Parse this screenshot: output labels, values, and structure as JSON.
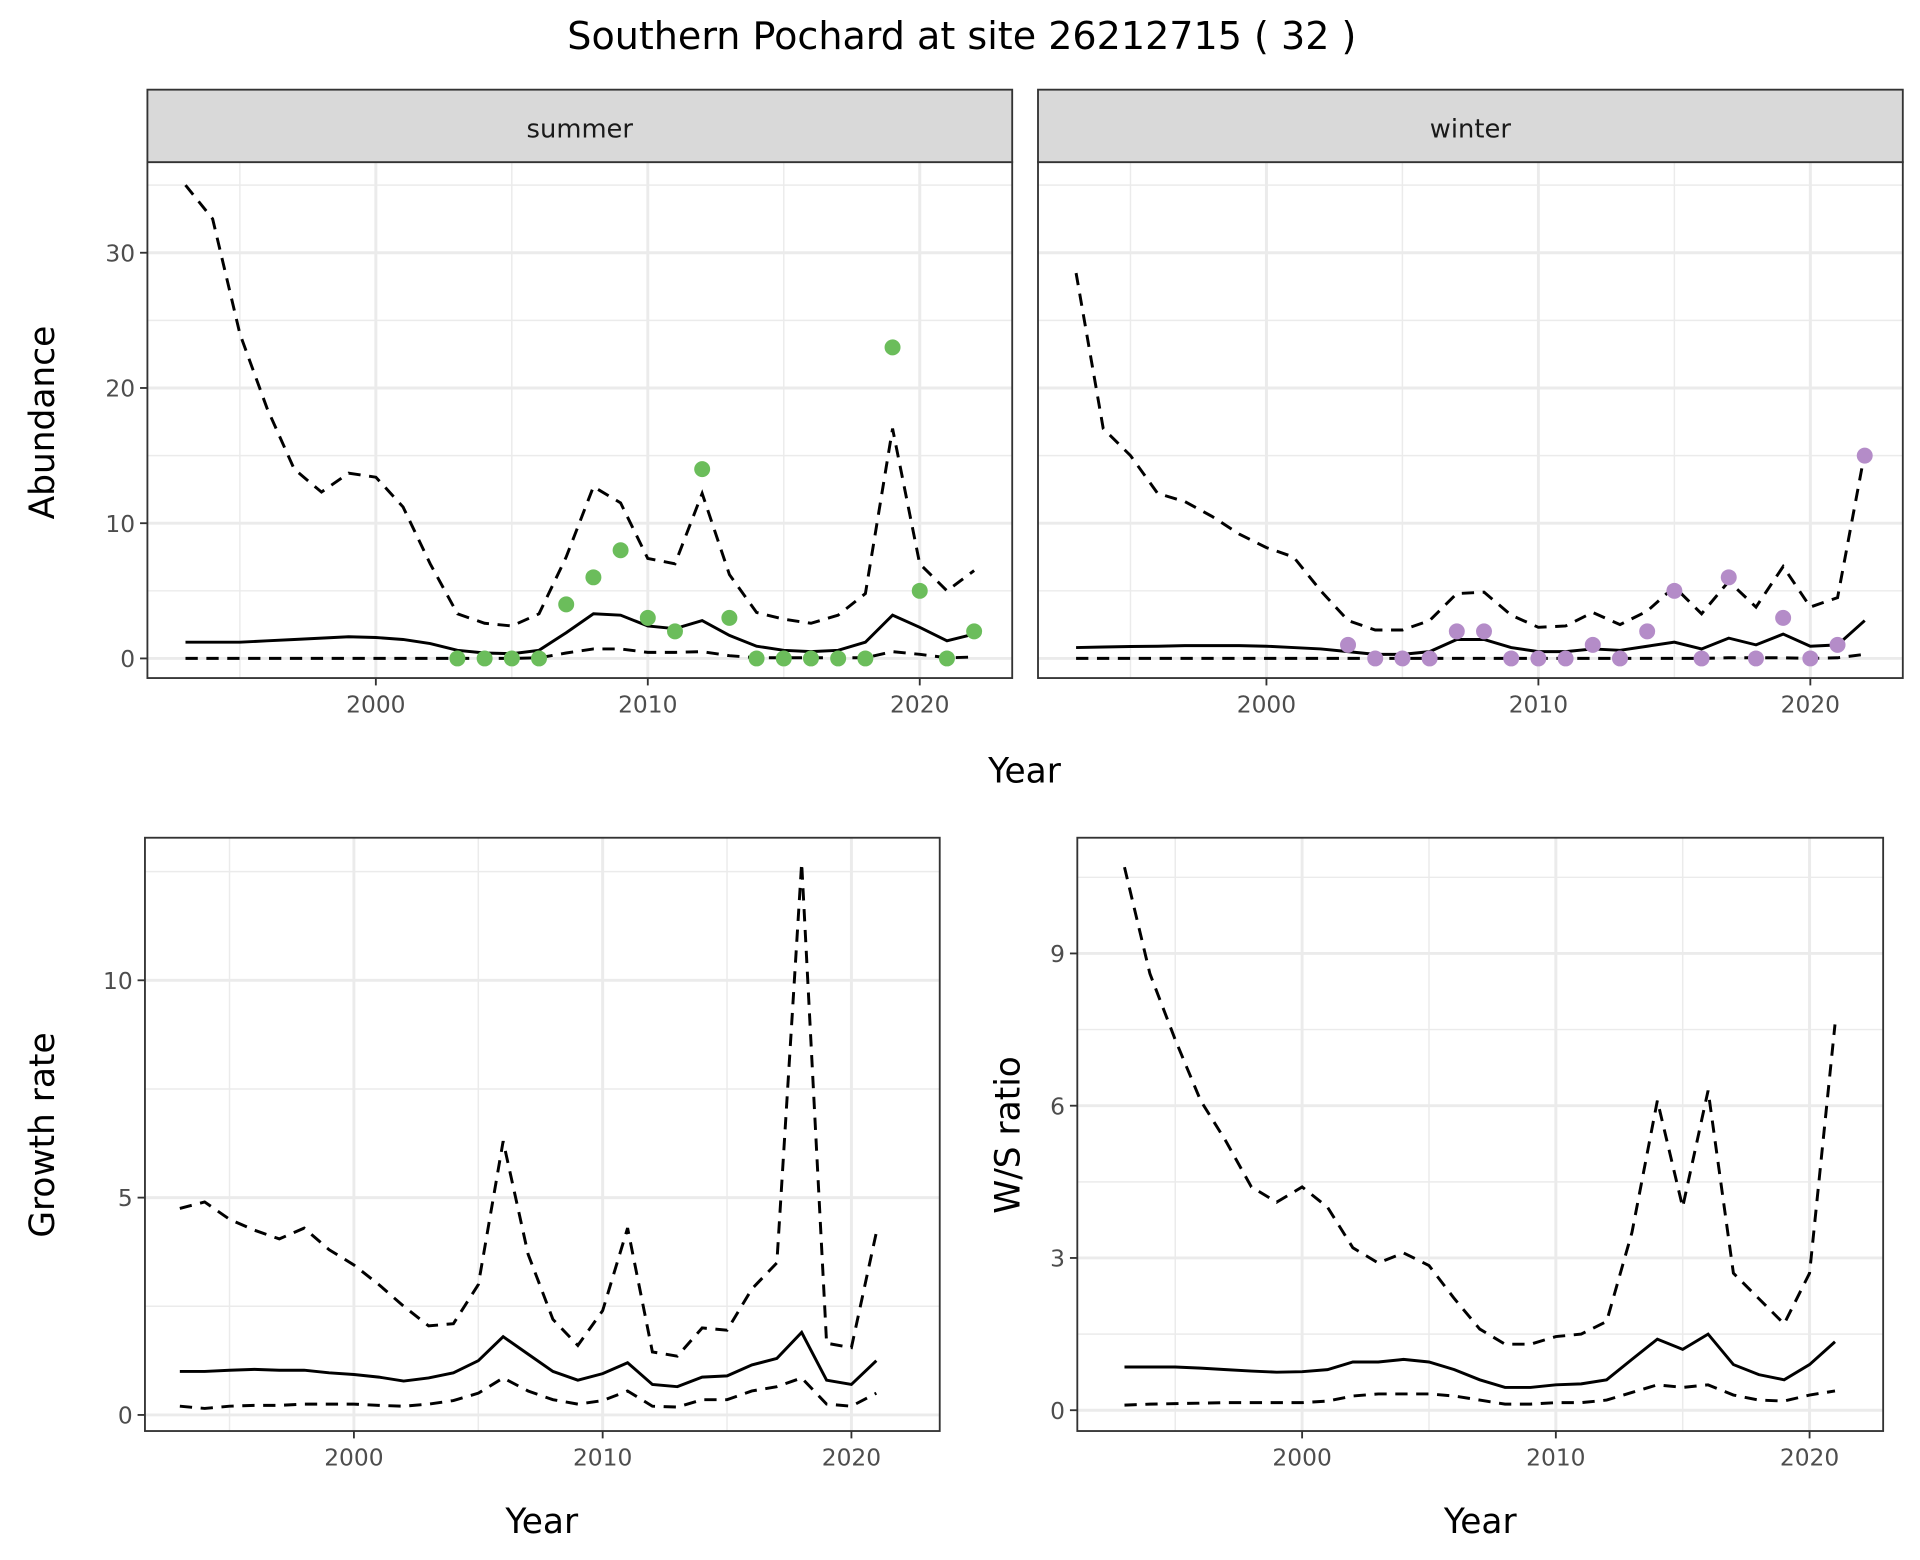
{
  "title": "Southern Pochard at site 26212715 ( 32 )",
  "colors": {
    "summer_points": "#6bbd5b",
    "winter_points": "#b48cc8",
    "lines": "#000000",
    "strip_bg": "#d9d9d9",
    "grid": "#ebebeb"
  },
  "chart_data": [
    {
      "type": "line+scatter",
      "facet": "summer",
      "xlabel": "Year",
      "ylabel": "Abundance",
      "xlim": [
        1991.6,
        2023.4
      ],
      "ylim": [
        -1.45,
        36.7
      ],
      "xticks": [
        2000,
        2010,
        2020
      ],
      "yticks": [
        0,
        10,
        20,
        30
      ],
      "grid": true,
      "x": [
        1993,
        1994,
        1995,
        1996,
        1997,
        1998,
        1999,
        2000,
        2001,
        2002,
        2003,
        2004,
        2005,
        2006,
        2007,
        2008,
        2009,
        2010,
        2011,
        2012,
        2013,
        2014,
        2015,
        2016,
        2017,
        2018,
        2019,
        2020,
        2021,
        2022
      ],
      "mean": [
        1.2,
        1.2,
        1.2,
        1.3,
        1.4,
        1.5,
        1.6,
        1.55,
        1.4,
        1.1,
        0.6,
        0.4,
        0.35,
        0.6,
        1.9,
        3.3,
        3.2,
        2.4,
        2.2,
        2.8,
        1.7,
        0.9,
        0.6,
        0.5,
        0.6,
        1.2,
        3.2,
        2.3,
        1.3,
        1.8
      ],
      "upper": [
        35,
        32.5,
        24,
        18.5,
        14,
        12.3,
        13.7,
        13.4,
        11.2,
        7,
        3.3,
        2.6,
        2.4,
        3.3,
        7.5,
        12.7,
        11.5,
        7.4,
        7,
        12.2,
        6.2,
        3.4,
        2.9,
        2.6,
        3.2,
        4.8,
        17,
        7,
        5,
        6.5
      ],
      "lower": [
        0,
        0,
        0,
        0,
        0,
        0,
        0,
        0,
        0,
        0,
        0,
        0,
        0,
        0.05,
        0.4,
        0.7,
        0.7,
        0.45,
        0.45,
        0.5,
        0.2,
        0.05,
        0.05,
        0.05,
        0.05,
        0.05,
        0.5,
        0.3,
        0.05,
        0.1
      ],
      "points": {
        "x": [
          2003,
          2004,
          2005,
          2006,
          2007,
          2008,
          2009,
          2010,
          2011,
          2012,
          2013,
          2014,
          2015,
          2016,
          2017,
          2018,
          2019,
          2020,
          2021,
          2022
        ],
        "y": [
          0,
          0,
          0,
          0,
          4,
          6,
          8,
          3,
          2,
          14,
          3,
          0,
          0,
          0,
          0,
          0,
          23,
          5,
          0,
          2
        ]
      }
    },
    {
      "type": "line+scatter",
      "facet": "winter",
      "xlabel": "Year",
      "ylabel": "Abundance",
      "xlim": [
        1991.6,
        2023.4
      ],
      "ylim": [
        -1.45,
        36.7
      ],
      "xticks": [
        2000,
        2010,
        2020
      ],
      "yticks": [
        0,
        10,
        20,
        30
      ],
      "grid": true,
      "x": [
        1993,
        1994,
        1995,
        1996,
        1997,
        1998,
        1999,
        2000,
        2001,
        2002,
        2003,
        2004,
        2005,
        2006,
        2007,
        2008,
        2009,
        2010,
        2011,
        2012,
        2013,
        2014,
        2015,
        2016,
        2017,
        2018,
        2019,
        2020,
        2021,
        2022
      ],
      "mean": [
        0.8,
        0.85,
        0.88,
        0.9,
        0.95,
        0.95,
        0.95,
        0.9,
        0.8,
        0.7,
        0.5,
        0.3,
        0.3,
        0.5,
        1.4,
        1.4,
        0.8,
        0.5,
        0.5,
        0.7,
        0.6,
        0.9,
        1.2,
        0.7,
        1.5,
        1.0,
        1.8,
        0.9,
        1.0,
        2.8
      ],
      "upper": [
        28.5,
        17,
        15,
        12.2,
        11.6,
        10.5,
        9.2,
        8.2,
        7.5,
        5,
        2.8,
        2.1,
        2.1,
        2.8,
        4.8,
        4.9,
        3.2,
        2.3,
        2.4,
        3.4,
        2.5,
        3.5,
        5.3,
        3.3,
        5.7,
        3.8,
        6.8,
        3.8,
        4.5,
        15.2
      ],
      "lower": [
        0,
        0,
        0,
        0,
        0,
        0,
        0,
        0,
        0,
        0,
        0,
        0,
        0,
        0,
        0,
        0,
        0,
        0,
        0,
        0,
        0,
        0,
        0,
        0,
        0.05,
        0.05,
        0.05,
        0,
        0.05,
        0.3
      ],
      "points": {
        "x": [
          2003,
          2004,
          2005,
          2006,
          2007,
          2008,
          2009,
          2010,
          2011,
          2012,
          2013,
          2014,
          2015,
          2016,
          2017,
          2018,
          2019,
          2020,
          2021,
          2022
        ],
        "y": [
          1,
          0,
          0,
          0,
          2,
          2,
          0,
          0,
          0,
          1,
          0,
          2,
          5,
          0,
          6,
          0,
          3,
          0,
          1,
          15
        ]
      }
    },
    {
      "type": "line",
      "xlabel": "Year",
      "ylabel": "Growth rate",
      "xlim": [
        1991.6,
        2023.55
      ],
      "ylim": [
        -0.37,
        13.28
      ],
      "xticks": [
        2000,
        2010,
        2020
      ],
      "yticks": [
        0,
        5,
        10
      ],
      "grid": true,
      "x": [
        1993,
        1994,
        1995,
        1996,
        1997,
        1998,
        1999,
        2000,
        2001,
        2002,
        2003,
        2004,
        2005,
        2006,
        2007,
        2008,
        2009,
        2010,
        2011,
        2012,
        2013,
        2014,
        2015,
        2016,
        2017,
        2018,
        2019,
        2020,
        2021
      ],
      "mean": [
        1.0,
        1.0,
        1.03,
        1.05,
        1.03,
        1.03,
        0.97,
        0.93,
        0.87,
        0.78,
        0.85,
        0.97,
        1.25,
        1.8,
        1.4,
        1.0,
        0.8,
        0.95,
        1.2,
        0.7,
        0.65,
        0.87,
        0.9,
        1.15,
        1.3,
        1.9,
        0.8,
        0.7,
        1.25
      ],
      "upper": [
        4.75,
        4.9,
        4.5,
        4.25,
        4.05,
        4.3,
        3.8,
        3.45,
        3.0,
        2.5,
        2.05,
        2.1,
        3.0,
        6.3,
        3.7,
        2.2,
        1.6,
        2.4,
        4.3,
        1.45,
        1.35,
        2.0,
        1.95,
        2.9,
        3.5,
        12.7,
        1.65,
        1.55,
        4.2
      ],
      "lower": [
        0.2,
        0.15,
        0.2,
        0.22,
        0.22,
        0.25,
        0.25,
        0.25,
        0.22,
        0.2,
        0.25,
        0.33,
        0.5,
        0.85,
        0.55,
        0.35,
        0.25,
        0.33,
        0.55,
        0.2,
        0.18,
        0.35,
        0.35,
        0.55,
        0.65,
        0.85,
        0.25,
        0.2,
        0.5
      ]
    },
    {
      "type": "line",
      "xlabel": "Year",
      "ylabel": "W/S ratio",
      "xlim": [
        1991.14,
        2022.9
      ],
      "ylim": [
        -0.41,
        11.28
      ],
      "xticks": [
        2000,
        2010,
        2020
      ],
      "yticks": [
        0,
        3,
        6,
        9
      ],
      "grid": true,
      "x": [
        1993,
        1994,
        1995,
        1996,
        1997,
        1998,
        1999,
        2000,
        2001,
        2002,
        2003,
        2004,
        2005,
        2006,
        2007,
        2008,
        2009,
        2010,
        2011,
        2012,
        2013,
        2014,
        2015,
        2016,
        2017,
        2018,
        2019,
        2020,
        2021
      ],
      "mean": [
        0.85,
        0.85,
        0.85,
        0.83,
        0.8,
        0.77,
        0.75,
        0.76,
        0.8,
        0.95,
        0.95,
        1.0,
        0.95,
        0.8,
        0.6,
        0.45,
        0.45,
        0.5,
        0.52,
        0.6,
        1.0,
        1.4,
        1.2,
        1.5,
        0.9,
        0.7,
        0.6,
        0.9,
        1.35
      ],
      "upper": [
        10.7,
        8.6,
        7.3,
        6.1,
        5.3,
        4.4,
        4.1,
        4.4,
        4.0,
        3.2,
        2.9,
        3.1,
        2.85,
        2.2,
        1.6,
        1.3,
        1.3,
        1.45,
        1.5,
        1.75,
        3.5,
        6.1,
        4.0,
        6.3,
        2.7,
        2.2,
        1.7,
        2.7,
        7.6
      ],
      "lower": [
        0.1,
        0.12,
        0.13,
        0.14,
        0.15,
        0.15,
        0.15,
        0.15,
        0.18,
        0.28,
        0.32,
        0.32,
        0.32,
        0.28,
        0.2,
        0.12,
        0.12,
        0.15,
        0.15,
        0.2,
        0.35,
        0.5,
        0.45,
        0.5,
        0.3,
        0.2,
        0.18,
        0.3,
        0.38
      ]
    }
  ]
}
